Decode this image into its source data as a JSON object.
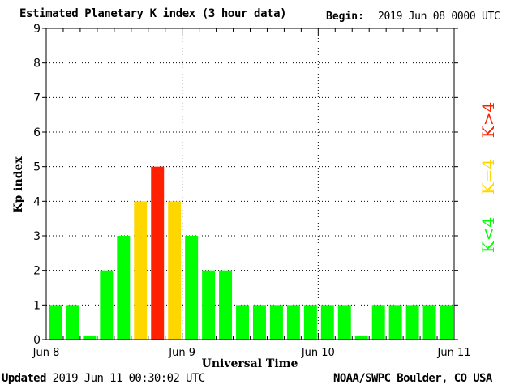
{
  "header": {
    "title": "Estimated Planetary K index (3 hour data)",
    "begin_label": "Begin:",
    "begin_value": "2019 Jun 08 0000 UTC"
  },
  "footer": {
    "updated_label": "Updated",
    "updated_value": "2019 Jun 11 00:30:02 UTC",
    "credit": "NOAA/SWPC Boulder, CO USA"
  },
  "chart_data": {
    "type": "bar",
    "xlabel": "Universal Time",
    "ylabel": "Kp index",
    "ylim": [
      0,
      9
    ],
    "yticks": [
      "0",
      "1",
      "2",
      "3",
      "4",
      "5",
      "6",
      "7",
      "8",
      "9"
    ],
    "x_tick_labels": [
      "Jun 8",
      "Jun 9",
      "Jun 10",
      "Jun 11"
    ],
    "grid": true,
    "bins_per_day": 8,
    "days": 3,
    "values": [
      1,
      1,
      0.1,
      2,
      3,
      4,
      5,
      4,
      3,
      2,
      2,
      1,
      1,
      1,
      1,
      1,
      1,
      1,
      0.1,
      1,
      1,
      1,
      1,
      1
    ],
    "colors": {
      "low": "#00ff00",
      "storm_threshold": "#ffd700",
      "high": "#ff2000"
    },
    "legend": [
      {
        "label": "K<4",
        "color": "#00ff00"
      },
      {
        "label": "K=4",
        "color": "#ffd700"
      },
      {
        "label": "K>4",
        "color": "#ff2000"
      }
    ],
    "legend_placement": "right"
  }
}
